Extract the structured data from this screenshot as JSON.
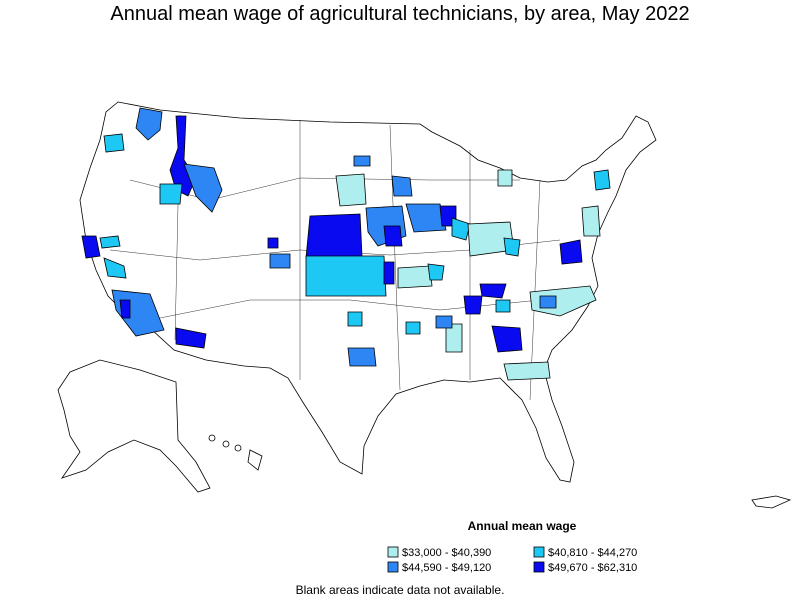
{
  "title": "Annual mean wage of agricultural technicians, by area, May 2022",
  "legend": {
    "title": "Annual mean wage",
    "items": [
      {
        "label": "$33,000 - $40,390",
        "color": "#aeeeee"
      },
      {
        "label": "$40,810 - $44,270",
        "color": "#1ec8f5"
      },
      {
        "label": "$44,590 - $49,120",
        "color": "#2e86f5"
      },
      {
        "label": "$49,670 - $62,310",
        "color": "#0a0af0"
      }
    ]
  },
  "note": "Blank areas indicate data not available."
}
